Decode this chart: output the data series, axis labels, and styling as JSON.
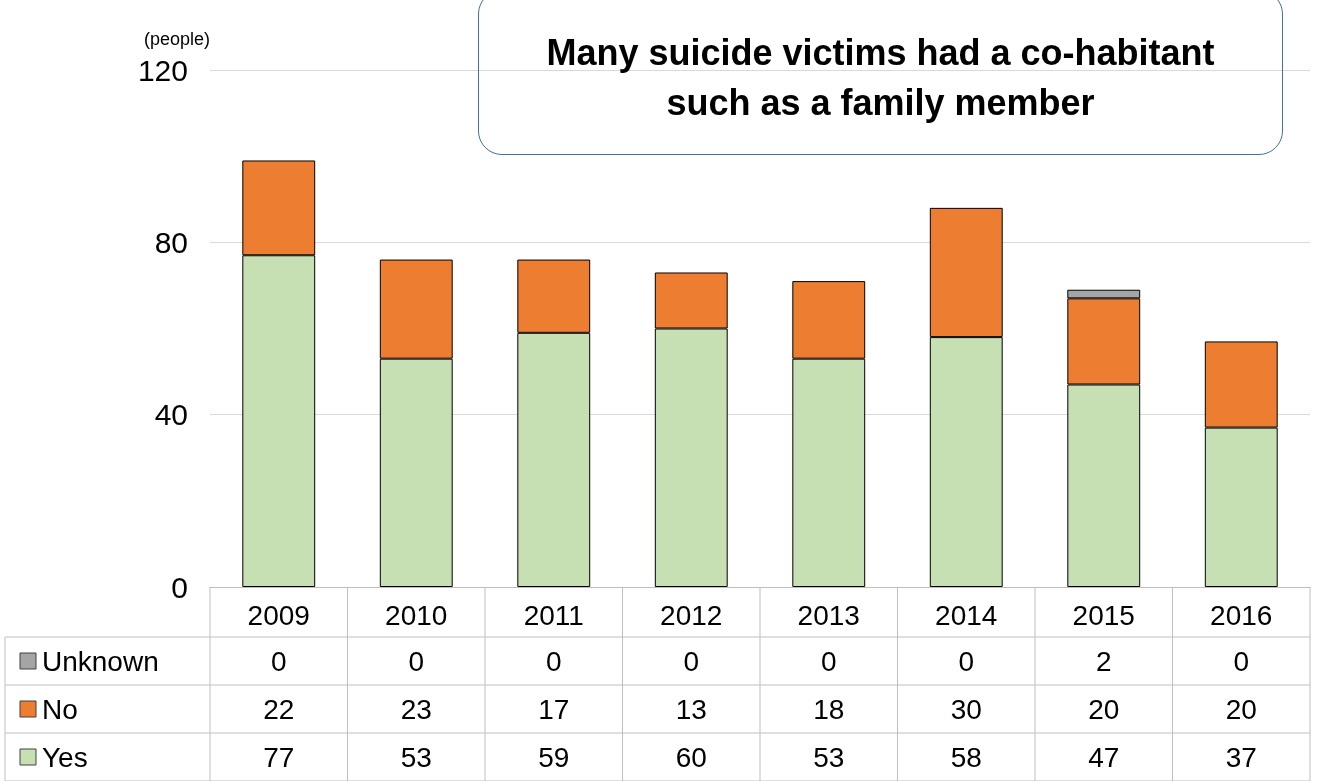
{
  "chart_data": {
    "type": "bar",
    "stacked": true,
    "ylabel": "(people)",
    "annotations": [
      "Many suicide victims had a co-habitant such as a family member"
    ],
    "categories": [
      "2009",
      "2010",
      "2011",
      "2012",
      "2013",
      "2014",
      "2015",
      "2016"
    ],
    "series": [
      {
        "name": "Yes",
        "color": "#c6e0b4",
        "values": [
          77,
          53,
          59,
          60,
          53,
          58,
          47,
          37
        ]
      },
      {
        "name": "No",
        "color": "#ed7d31",
        "values": [
          22,
          23,
          17,
          13,
          18,
          30,
          20,
          20
        ]
      },
      {
        "name": "Unknown",
        "color": "#a5a5a5",
        "values": [
          0,
          0,
          0,
          0,
          0,
          0,
          2,
          0
        ]
      }
    ],
    "ylim": [
      0,
      120
    ],
    "yticks": [
      0,
      40,
      80,
      120
    ],
    "grid": "y",
    "legend": "bottom",
    "data_labels": true
  }
}
